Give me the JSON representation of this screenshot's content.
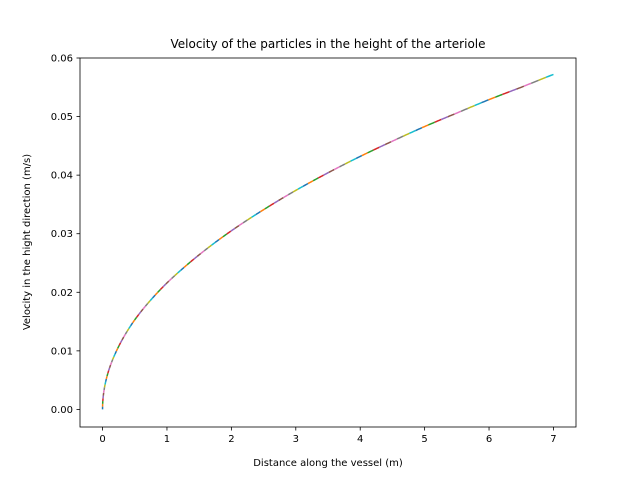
{
  "chart_data": {
    "type": "line",
    "title": "Velocity of the particles in the height of the arteriole",
    "xlabel": "Distance along the vessel (m)",
    "ylabel": "Velocity in the hight direction (m/s)",
    "xlim": [
      -0.35,
      7.35
    ],
    "ylim": [
      -0.003,
      0.06
    ],
    "xticks": [
      0,
      1,
      2,
      3,
      4,
      5,
      6,
      7
    ],
    "xtick_labels": [
      "0",
      "1",
      "2",
      "3",
      "4",
      "5",
      "6",
      "7"
    ],
    "yticks": [
      0.0,
      0.01,
      0.02,
      0.03,
      0.04,
      0.05,
      0.06
    ],
    "ytick_labels": [
      "0.00",
      "0.01",
      "0.02",
      "0.03",
      "0.04",
      "0.05",
      "0.06"
    ],
    "grid": false,
    "legend": "none",
    "curve": {
      "x": [
        0,
        0.05,
        0.1,
        0.2,
        0.3,
        0.5,
        0.75,
        1.0,
        1.25,
        1.5,
        2.0,
        2.5,
        3.0,
        3.5,
        4.0,
        4.5,
        5.0,
        5.5,
        6.0,
        6.5,
        7.0
      ],
      "y": [
        0,
        0.0048,
        0.0068,
        0.0096,
        0.0118,
        0.0153,
        0.0187,
        0.0216,
        0.0241,
        0.0264,
        0.0305,
        0.0341,
        0.0374,
        0.0404,
        0.0432,
        0.0458,
        0.0483,
        0.0506,
        0.0529,
        0.055,
        0.0572
      ]
    },
    "segment_colors": [
      "#1f77b4",
      "#ff7f0e",
      "#2ca02c",
      "#d62728",
      "#9467bd",
      "#8c564b",
      "#e377c2",
      "#7f7f7f",
      "#bcbd22",
      "#17becf"
    ]
  }
}
